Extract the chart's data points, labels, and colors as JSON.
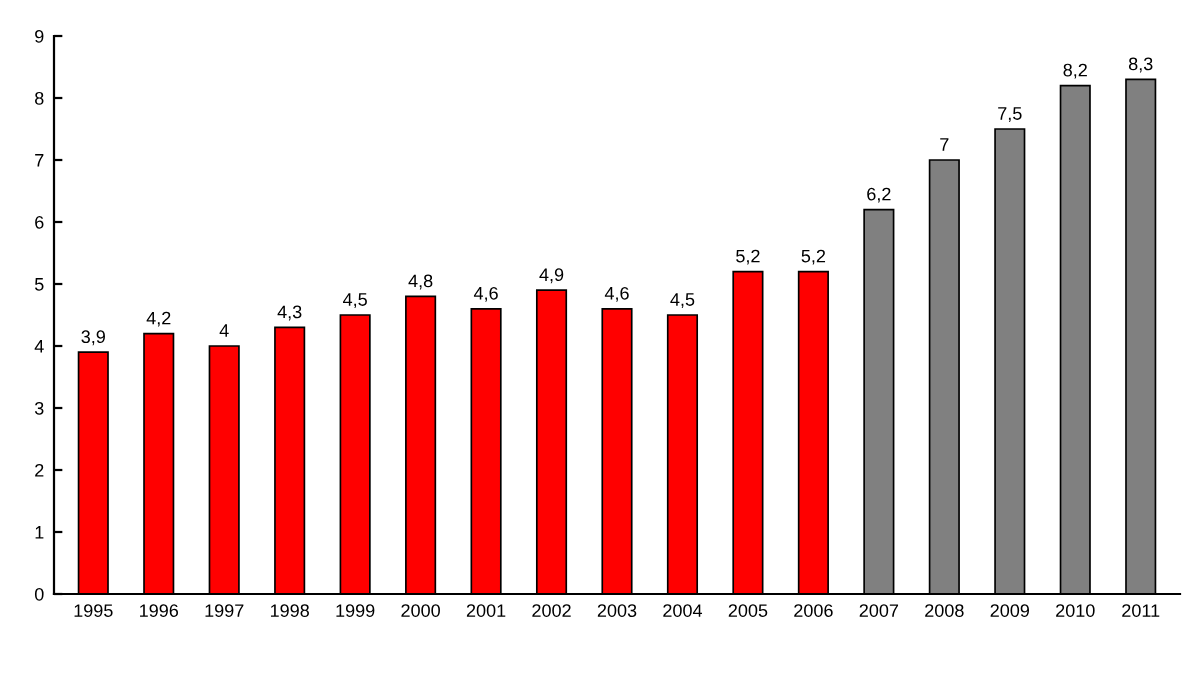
{
  "chart_data": {
    "type": "bar",
    "categories": [
      "1995",
      "1996",
      "1997",
      "1998",
      "1999",
      "2000",
      "2001",
      "2002",
      "2003",
      "2004",
      "2005",
      "2006",
      "2007",
      "2008",
      "2009",
      "2010",
      "2011"
    ],
    "values": [
      3.9,
      4.2,
      4.0,
      4.3,
      4.5,
      4.8,
      4.6,
      4.9,
      4.6,
      4.5,
      5.2,
      5.2,
      6.2,
      7.0,
      7.5,
      8.2,
      8.3
    ],
    "colors": [
      "#ff0000",
      "#ff0000",
      "#ff0000",
      "#ff0000",
      "#ff0000",
      "#ff0000",
      "#ff0000",
      "#ff0000",
      "#ff0000",
      "#ff0000",
      "#ff0000",
      "#ff0000",
      "#808080",
      "#808080",
      "#808080",
      "#808080",
      "#808080"
    ],
    "value_labels": [
      "3,9",
      "4,2",
      "4",
      "4,3",
      "4,5",
      "4,8",
      "4,6",
      "4,9",
      "4,6",
      "4,5",
      "5,2",
      "5,2",
      "6,2",
      "7",
      "7,5",
      "8,2",
      "8,3"
    ],
    "ylim": [
      0,
      9
    ],
    "yticks": [
      0,
      1,
      2,
      3,
      4,
      5,
      6,
      7,
      8,
      9
    ],
    "grid": false
  }
}
